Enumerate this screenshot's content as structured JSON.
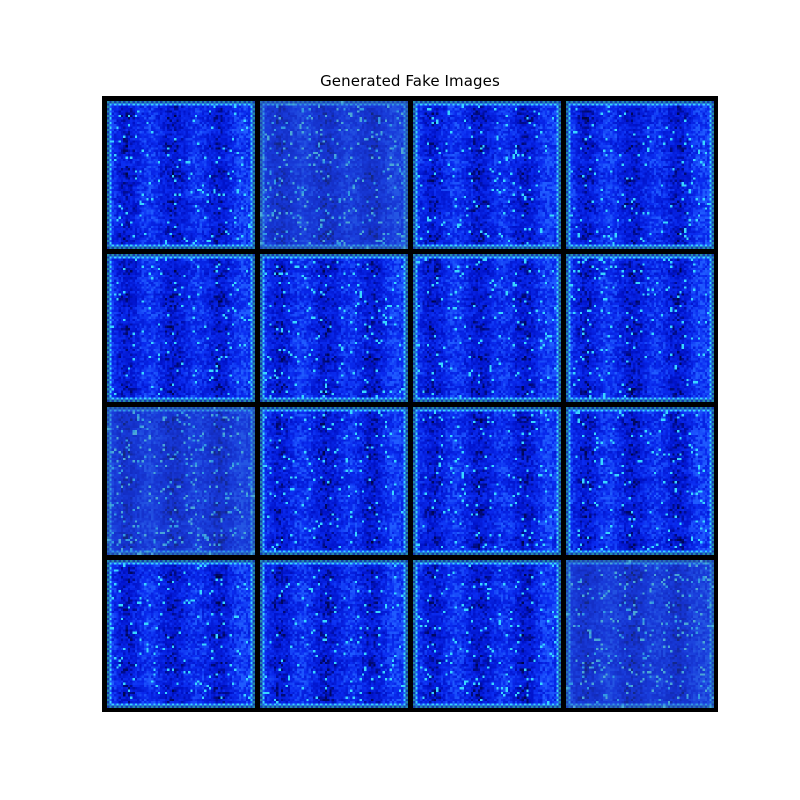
{
  "figure": {
    "title": "Generated Fake Images",
    "grid": {
      "rows": 4,
      "cols": 4,
      "background_color": "#000000"
    },
    "palette": {
      "dark": "#000010",
      "deep_blue": "#0012c8",
      "blue": "#0a2cf0",
      "bright_blue": "#1f5bff",
      "cyan": "#38d6ff",
      "muted_blue": "#2a4fc0",
      "muted_cyan": "#4aa7d6"
    },
    "tiles": [
      {
        "style": "vivid"
      },
      {
        "style": "faded"
      },
      {
        "style": "vivid"
      },
      {
        "style": "vivid"
      },
      {
        "style": "vivid"
      },
      {
        "style": "vivid"
      },
      {
        "style": "vivid"
      },
      {
        "style": "vivid"
      },
      {
        "style": "faded"
      },
      {
        "style": "vivid"
      },
      {
        "style": "vivid"
      },
      {
        "style": "vivid"
      },
      {
        "style": "vivid"
      },
      {
        "style": "vivid"
      },
      {
        "style": "vivid"
      },
      {
        "style": "faded"
      }
    ]
  }
}
